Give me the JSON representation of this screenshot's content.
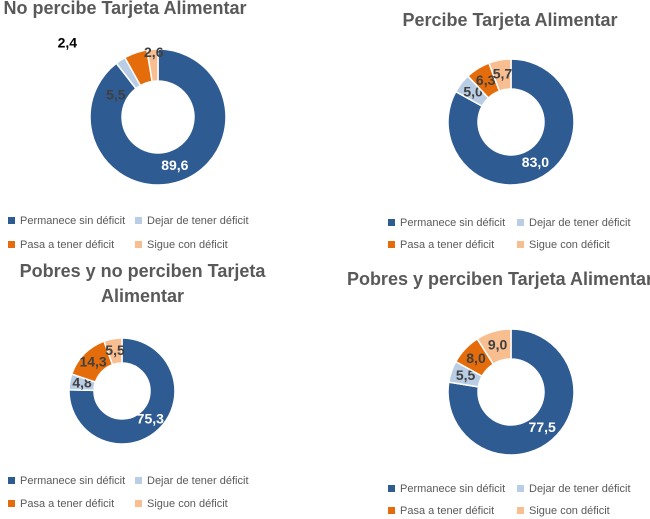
{
  "chart_data": [
    {
      "type": "donut",
      "title": "No percibe Tarjeta Alimentar",
      "categories": [
        "Permanece sin déficit",
        "Dejar de tener déficit",
        "Pasa a tener déficit",
        "Sigue con déficit"
      ],
      "values": [
        89.6,
        2.4,
        5.5,
        2.6
      ],
      "value_labels": [
        "89,6",
        "2,4",
        "5,5",
        "2,6"
      ],
      "colors": [
        "#2f5b93",
        "#b9cde5",
        "#e46c0a",
        "#f8be8f"
      ]
    },
    {
      "type": "donut",
      "title": "Percibe Tarjeta Alimentar",
      "categories": [
        "Permanece sin déficit",
        "Dejar de tener déficit",
        "Pasa a tener déficit",
        "Sigue con déficit"
      ],
      "values": [
        83.0,
        5.0,
        6.3,
        5.7
      ],
      "value_labels": [
        "83,0",
        "5,0",
        "6,3",
        "5,7"
      ],
      "colors": [
        "#2f5b93",
        "#b9cde5",
        "#e46c0a",
        "#f8be8f"
      ]
    },
    {
      "type": "donut",
      "title": "Pobres y no perciben Tarjeta Alimentar",
      "categories": [
        "Permanece sin déficit",
        "Dejar de tener déficit",
        "Pasa a tener déficit",
        "Sigue con déficit"
      ],
      "values": [
        75.3,
        4.8,
        14.3,
        5.5
      ],
      "value_labels": [
        "75,3",
        "4,8",
        "14,3",
        "5,5"
      ],
      "colors": [
        "#2f5b93",
        "#b9cde5",
        "#e46c0a",
        "#f8be8f"
      ]
    },
    {
      "type": "donut",
      "title": "Pobres y perciben Tarjeta Alimentar",
      "categories": [
        "Permanece sin déficit",
        "Dejar de tener déficit",
        "Pasa a tener déficit",
        "Sigue con déficit"
      ],
      "values": [
        77.5,
        5.5,
        8.0,
        9.0
      ],
      "value_labels": [
        "77,5",
        "5,5",
        "8,0",
        "9,0"
      ],
      "colors": [
        "#2f5b93",
        "#b9cde5",
        "#e46c0a",
        "#f8be8f"
      ]
    }
  ]
}
